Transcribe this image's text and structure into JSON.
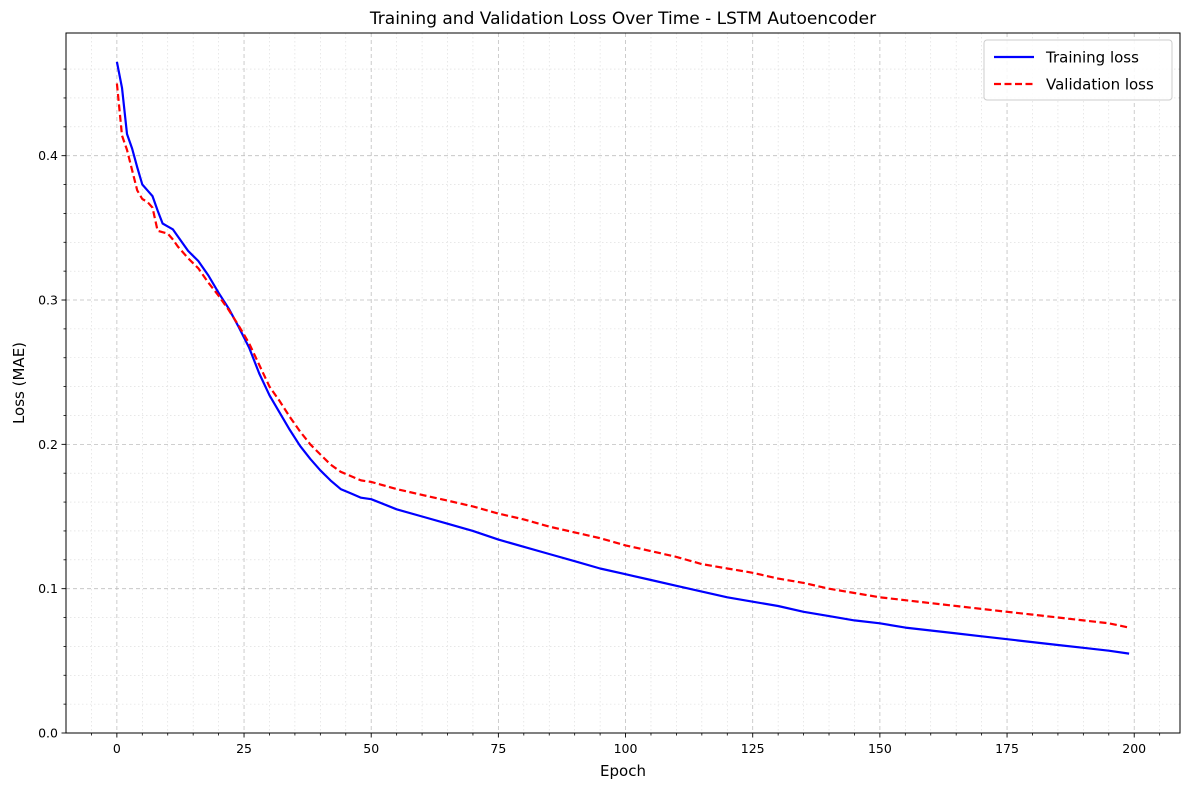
{
  "chart_data": {
    "type": "line",
    "title": "Training and Validation Loss Over Time - LSTM Autoencoder",
    "xlabel": "Epoch",
    "ylabel": "Loss (MAE)",
    "xlim": [
      -10,
      209
    ],
    "ylim": [
      0.0,
      0.485
    ],
    "x_ticks": [
      0,
      25,
      50,
      75,
      100,
      125,
      150,
      175,
      200
    ],
    "x_tick_labels": [
      "0",
      "25",
      "50",
      "75",
      "100",
      "125",
      "150",
      "175",
      "200"
    ],
    "y_ticks": [
      0.0,
      0.1,
      0.2,
      0.3,
      0.4
    ],
    "y_tick_labels": [
      "0.0",
      "0.1",
      "0.2",
      "0.3",
      "0.4"
    ],
    "grid": true,
    "minor_grid": true,
    "legend_position": "top-right",
    "series": [
      {
        "name": "Training loss",
        "color": "#0000ff",
        "style": "solid",
        "x": [
          0,
          1,
          2,
          3,
          4,
          5,
          6,
          7,
          8,
          9,
          10,
          11,
          12,
          14,
          16,
          18,
          20,
          22,
          24,
          26,
          28,
          30,
          32,
          34,
          36,
          38,
          40,
          42,
          44,
          46,
          48,
          50,
          55,
          60,
          65,
          70,
          75,
          80,
          85,
          90,
          95,
          100,
          105,
          110,
          115,
          120,
          125,
          130,
          135,
          140,
          145,
          150,
          155,
          160,
          165,
          170,
          175,
          180,
          185,
          190,
          195,
          199
        ],
        "y": [
          0.465,
          0.447,
          0.415,
          0.405,
          0.392,
          0.38,
          0.376,
          0.372,
          0.362,
          0.353,
          0.351,
          0.349,
          0.344,
          0.334,
          0.327,
          0.317,
          0.305,
          0.294,
          0.281,
          0.267,
          0.249,
          0.234,
          0.222,
          0.21,
          0.199,
          0.19,
          0.182,
          0.175,
          0.169,
          0.166,
          0.163,
          0.162,
          0.155,
          0.15,
          0.145,
          0.14,
          0.134,
          0.129,
          0.124,
          0.119,
          0.114,
          0.11,
          0.106,
          0.102,
          0.098,
          0.094,
          0.091,
          0.088,
          0.084,
          0.081,
          0.078,
          0.076,
          0.073,
          0.071,
          0.069,
          0.067,
          0.065,
          0.063,
          0.061,
          0.059,
          0.057,
          0.055
        ]
      },
      {
        "name": "Validation loss",
        "color": "#ff0000",
        "style": "dashed",
        "x": [
          0,
          1,
          2,
          3,
          4,
          5,
          6,
          7,
          8,
          9,
          10,
          11,
          12,
          14,
          16,
          18,
          20,
          22,
          24,
          26,
          28,
          30,
          32,
          34,
          36,
          38,
          40,
          42,
          44,
          46,
          48,
          50,
          55,
          60,
          65,
          70,
          75,
          80,
          85,
          90,
          95,
          100,
          105,
          110,
          115,
          120,
          125,
          130,
          135,
          140,
          145,
          150,
          155,
          160,
          165,
          170,
          175,
          180,
          185,
          190,
          195,
          199
        ],
        "y": [
          0.45,
          0.414,
          0.404,
          0.39,
          0.376,
          0.37,
          0.368,
          0.364,
          0.348,
          0.347,
          0.346,
          0.342,
          0.337,
          0.329,
          0.322,
          0.312,
          0.303,
          0.293,
          0.282,
          0.27,
          0.255,
          0.24,
          0.23,
          0.219,
          0.209,
          0.2,
          0.193,
          0.186,
          0.181,
          0.178,
          0.175,
          0.174,
          0.169,
          0.165,
          0.161,
          0.157,
          0.152,
          0.148,
          0.143,
          0.139,
          0.135,
          0.13,
          0.126,
          0.122,
          0.117,
          0.114,
          0.111,
          0.107,
          0.104,
          0.1,
          0.097,
          0.094,
          0.092,
          0.09,
          0.088,
          0.086,
          0.084,
          0.082,
          0.08,
          0.078,
          0.076,
          0.073
        ]
      }
    ]
  }
}
